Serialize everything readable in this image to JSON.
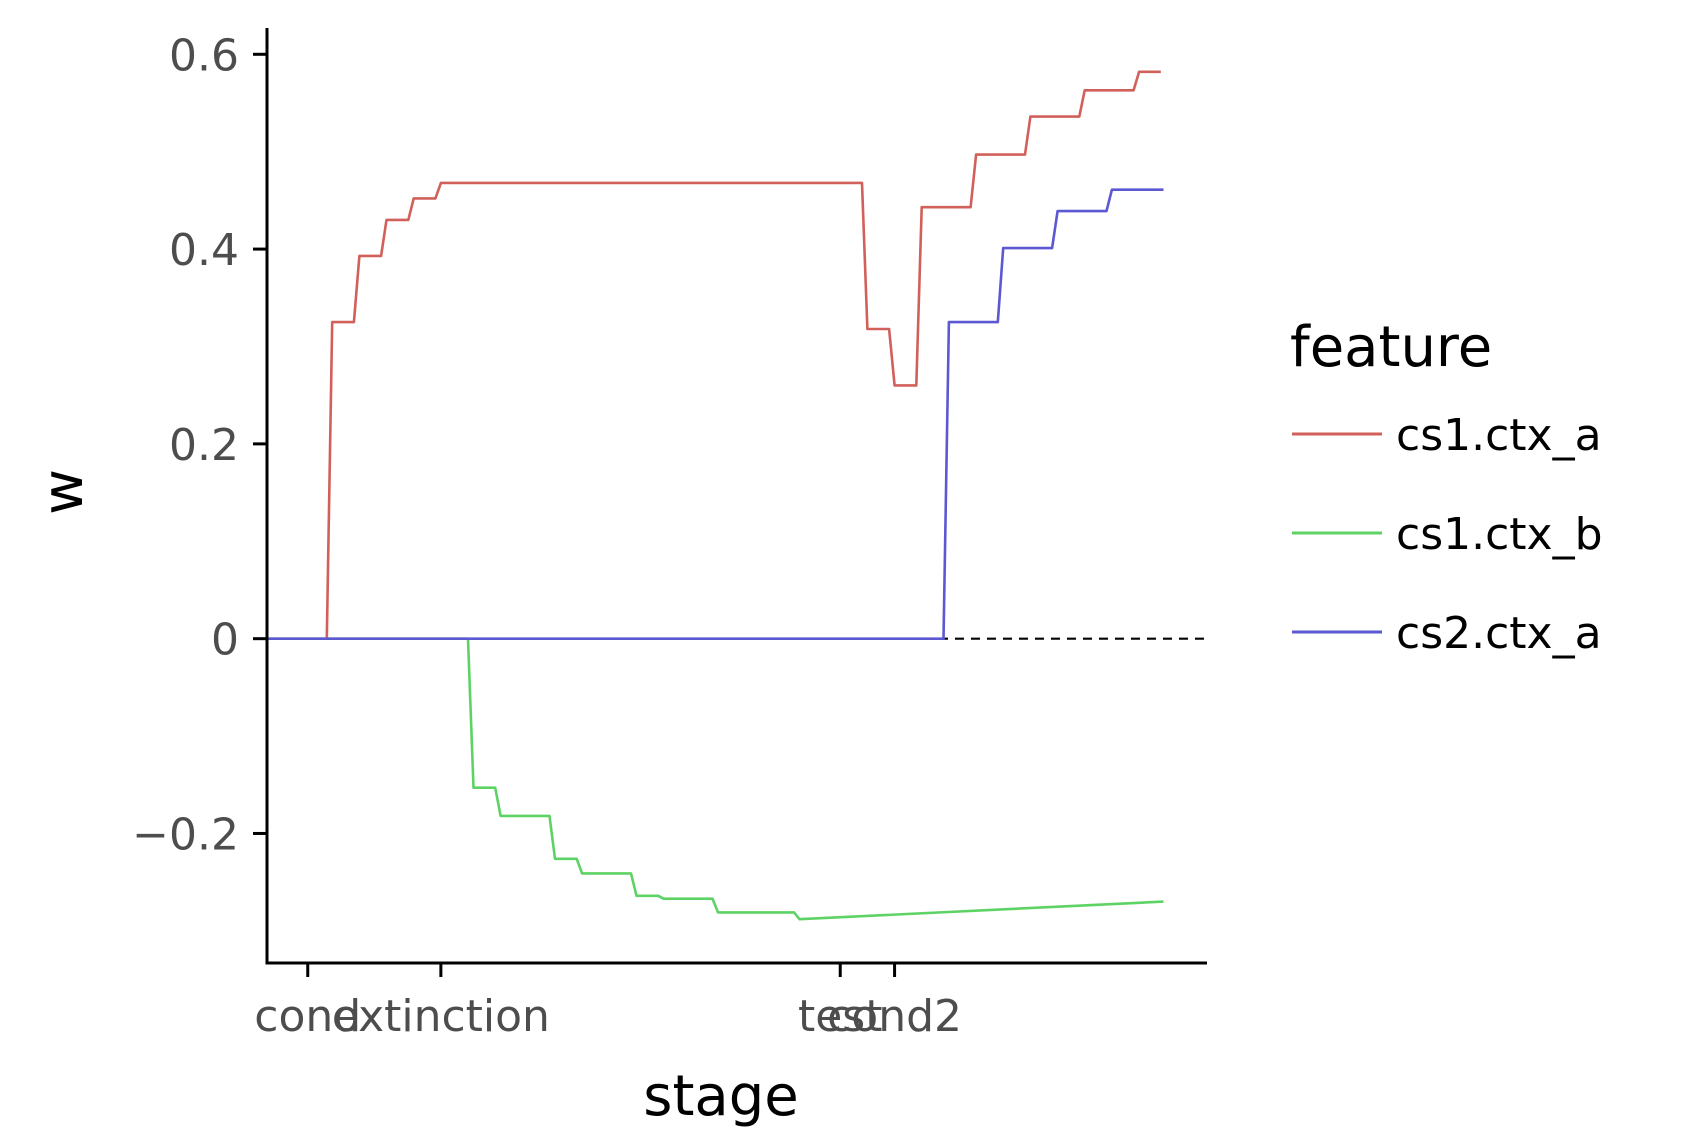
{
  "chart_data": {
    "type": "line",
    "xlabel": "stage",
    "ylabel": "w",
    "ylim": [
      -0.333,
      0.627
    ],
    "y_ticks": [
      {
        "value": 0.6,
        "label": "0.6"
      },
      {
        "value": 0.4,
        "label": "0.4"
      },
      {
        "value": 0.2,
        "label": "0.2"
      },
      {
        "value": 0,
        "label": "0"
      },
      {
        "value": -0.2,
        "label": "−0.2"
      }
    ],
    "xlim": [
      0,
      34.6
    ],
    "x_ticks": [
      {
        "value": 1.5,
        "label": "cond"
      },
      {
        "value": 6.4,
        "label": "extinction"
      },
      {
        "value": 21.1,
        "label": "test"
      },
      {
        "value": 23.1,
        "label": "cond2"
      }
    ],
    "reference_line": {
      "y": 0,
      "style": "dashed"
    },
    "legend": {
      "title": "feature",
      "position": "right"
    },
    "grid": false,
    "series": [
      {
        "name": "cs1.ctx_a",
        "color": "#d1605b",
        "points": [
          [
            2.2,
            0
          ],
          [
            2.4,
            0.325
          ],
          [
            3.2,
            0.325
          ],
          [
            3.4,
            0.393
          ],
          [
            4.2,
            0.393
          ],
          [
            4.4,
            0.43
          ],
          [
            5.2,
            0.43
          ],
          [
            5.4,
            0.452
          ],
          [
            6.2,
            0.452
          ],
          [
            6.4,
            0.468
          ],
          [
            21.9,
            0.468
          ],
          [
            22.1,
            0.318
          ],
          [
            22.9,
            0.318
          ],
          [
            23.1,
            0.26
          ],
          [
            23.9,
            0.26
          ],
          [
            24.1,
            0.443
          ],
          [
            25.9,
            0.443
          ],
          [
            26.1,
            0.497
          ],
          [
            27.9,
            0.497
          ],
          [
            28.1,
            0.536
          ],
          [
            29.9,
            0.536
          ],
          [
            30.1,
            0.563
          ],
          [
            31.9,
            0.563
          ],
          [
            32.1,
            0.582
          ],
          [
            32.9,
            0.582
          ]
        ]
      },
      {
        "name": "cs1.ctx_b",
        "color": "#5ed365",
        "points": [
          [
            0,
            0
          ],
          [
            7.4,
            0
          ],
          [
            7.6,
            -0.153
          ],
          [
            8.4,
            -0.153
          ],
          [
            8.6,
            -0.182
          ],
          [
            10.4,
            -0.182
          ],
          [
            10.6,
            -0.226
          ],
          [
            11.4,
            -0.226
          ],
          [
            11.6,
            -0.241
          ],
          [
            13.4,
            -0.241
          ],
          [
            13.6,
            -0.264
          ],
          [
            14.4,
            -0.264
          ],
          [
            14.6,
            -0.267
          ],
          [
            16.4,
            -0.267
          ],
          [
            16.6,
            -0.281
          ],
          [
            19.4,
            -0.281
          ],
          [
            19.6,
            -0.288
          ],
          [
            33.0,
            -0.27
          ]
        ]
      },
      {
        "name": "cs2.ctx_a",
        "color": "#5c58d1",
        "points": [
          [
            0,
            0
          ],
          [
            24.9,
            0
          ],
          [
            25.1,
            0.325
          ],
          [
            26.9,
            0.325
          ],
          [
            27.1,
            0.401
          ],
          [
            28.9,
            0.401
          ],
          [
            29.1,
            0.439
          ],
          [
            30.9,
            0.439
          ],
          [
            31.1,
            0.461
          ],
          [
            33.0,
            0.461
          ]
        ]
      }
    ]
  }
}
